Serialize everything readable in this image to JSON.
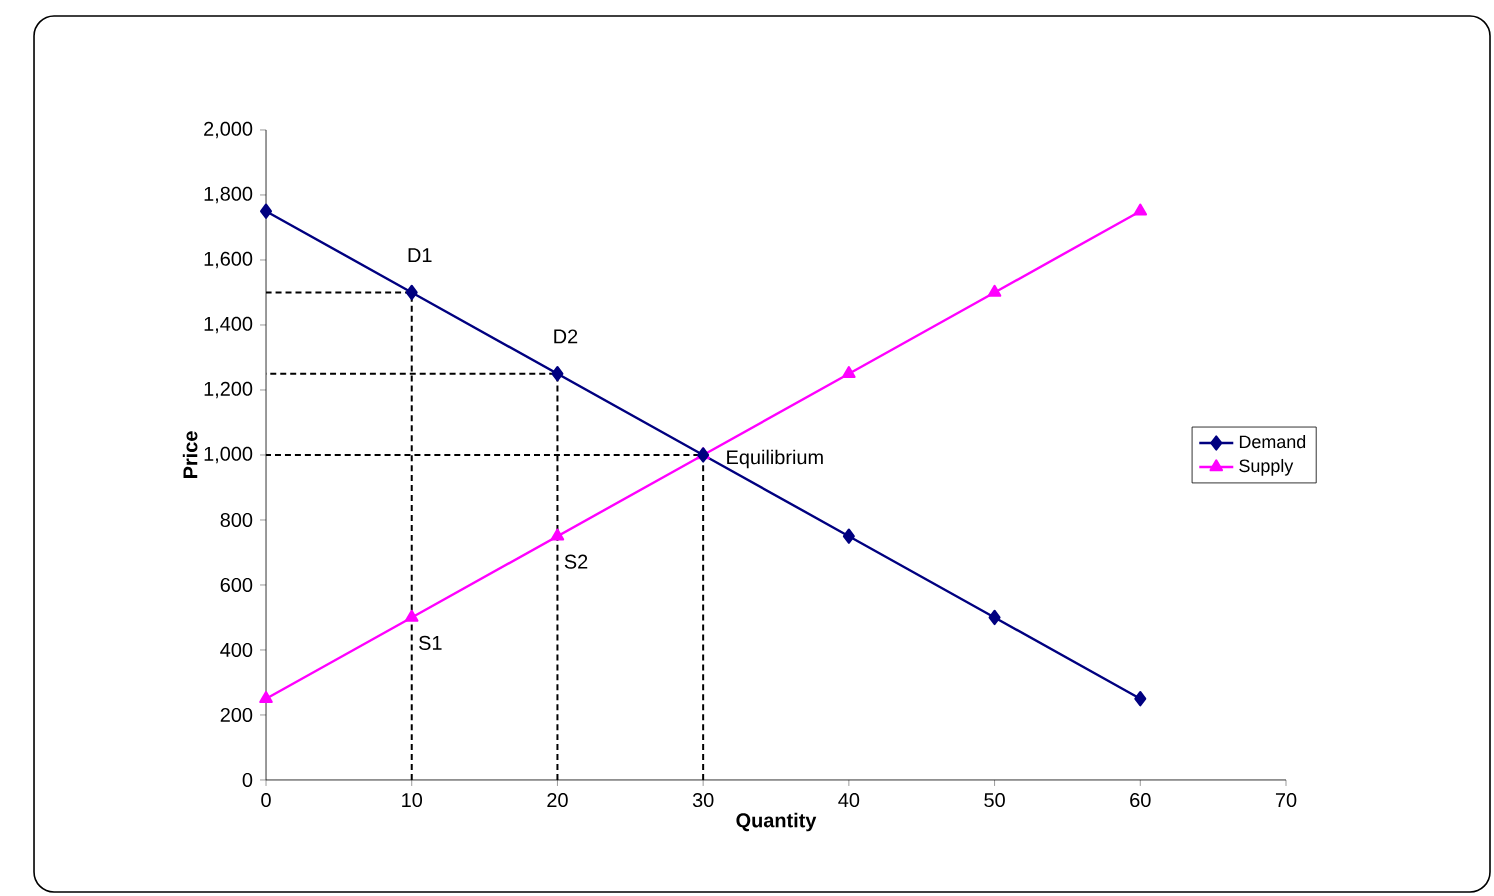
{
  "chart_data": {
    "type": "line",
    "xlabel": "Quantity",
    "ylabel": "Price",
    "x": [
      0,
      10,
      20,
      30,
      40,
      50,
      60
    ],
    "series": [
      {
        "name": "Demand",
        "color": "#000080",
        "marker": "diamond",
        "line_style": "solid",
        "values": [
          1750,
          1500,
          1250,
          1000,
          750,
          500,
          250
        ]
      },
      {
        "name": "Supply",
        "color": "#ff00ff",
        "marker": "triangle",
        "line_style": "solid",
        "values": [
          250,
          500,
          750,
          1000,
          1250,
          1500,
          1750
        ]
      },
      {
        "color": "#000000",
        "marker": "none",
        "line_style": "dashed",
        "x": [
          10,
          10,
          0
        ],
        "values": [
          0,
          1500,
          1500
        ]
      },
      {
        "color": "#000000",
        "marker": "none",
        "line_style": "dashed",
        "x": [
          20,
          20,
          0
        ],
        "values": [
          0,
          1250,
          1250
        ]
      },
      {
        "color": "#000000",
        "marker": "none",
        "line_style": "dashed",
        "x": [
          30,
          30,
          0
        ],
        "values": [
          0,
          1000,
          1000
        ]
      }
    ],
    "xlim": [
      0,
      70
    ],
    "xticks": [
      0,
      10,
      20,
      30,
      40,
      50,
      60,
      70
    ],
    "ylim": [
      0,
      2000
    ],
    "yticks": [
      0,
      200,
      400,
      600,
      800,
      {
        "value": 1000,
        "label": "1,000"
      },
      {
        "value": 1200,
        "label": "1,200"
      },
      {
        "value": 1400,
        "label": "1,400"
      },
      {
        "value": 1600,
        "label": "1,600"
      },
      {
        "value": 1800,
        "label": "1,800"
      },
      {
        "value": 2000,
        "label": "2,000"
      }
    ],
    "grid": false,
    "legend": "right",
    "annotations": [
      {
        "text": "D1",
        "x": 10,
        "y": 1500
      },
      {
        "text": "D2",
        "x": 20,
        "y": 1250
      },
      {
        "text": "S1",
        "x": 10,
        "y": 500
      },
      {
        "text": "S2",
        "x": 20,
        "y": 750
      },
      {
        "text": "Equilibrium",
        "x": 30,
        "y": 1000
      }
    ]
  }
}
